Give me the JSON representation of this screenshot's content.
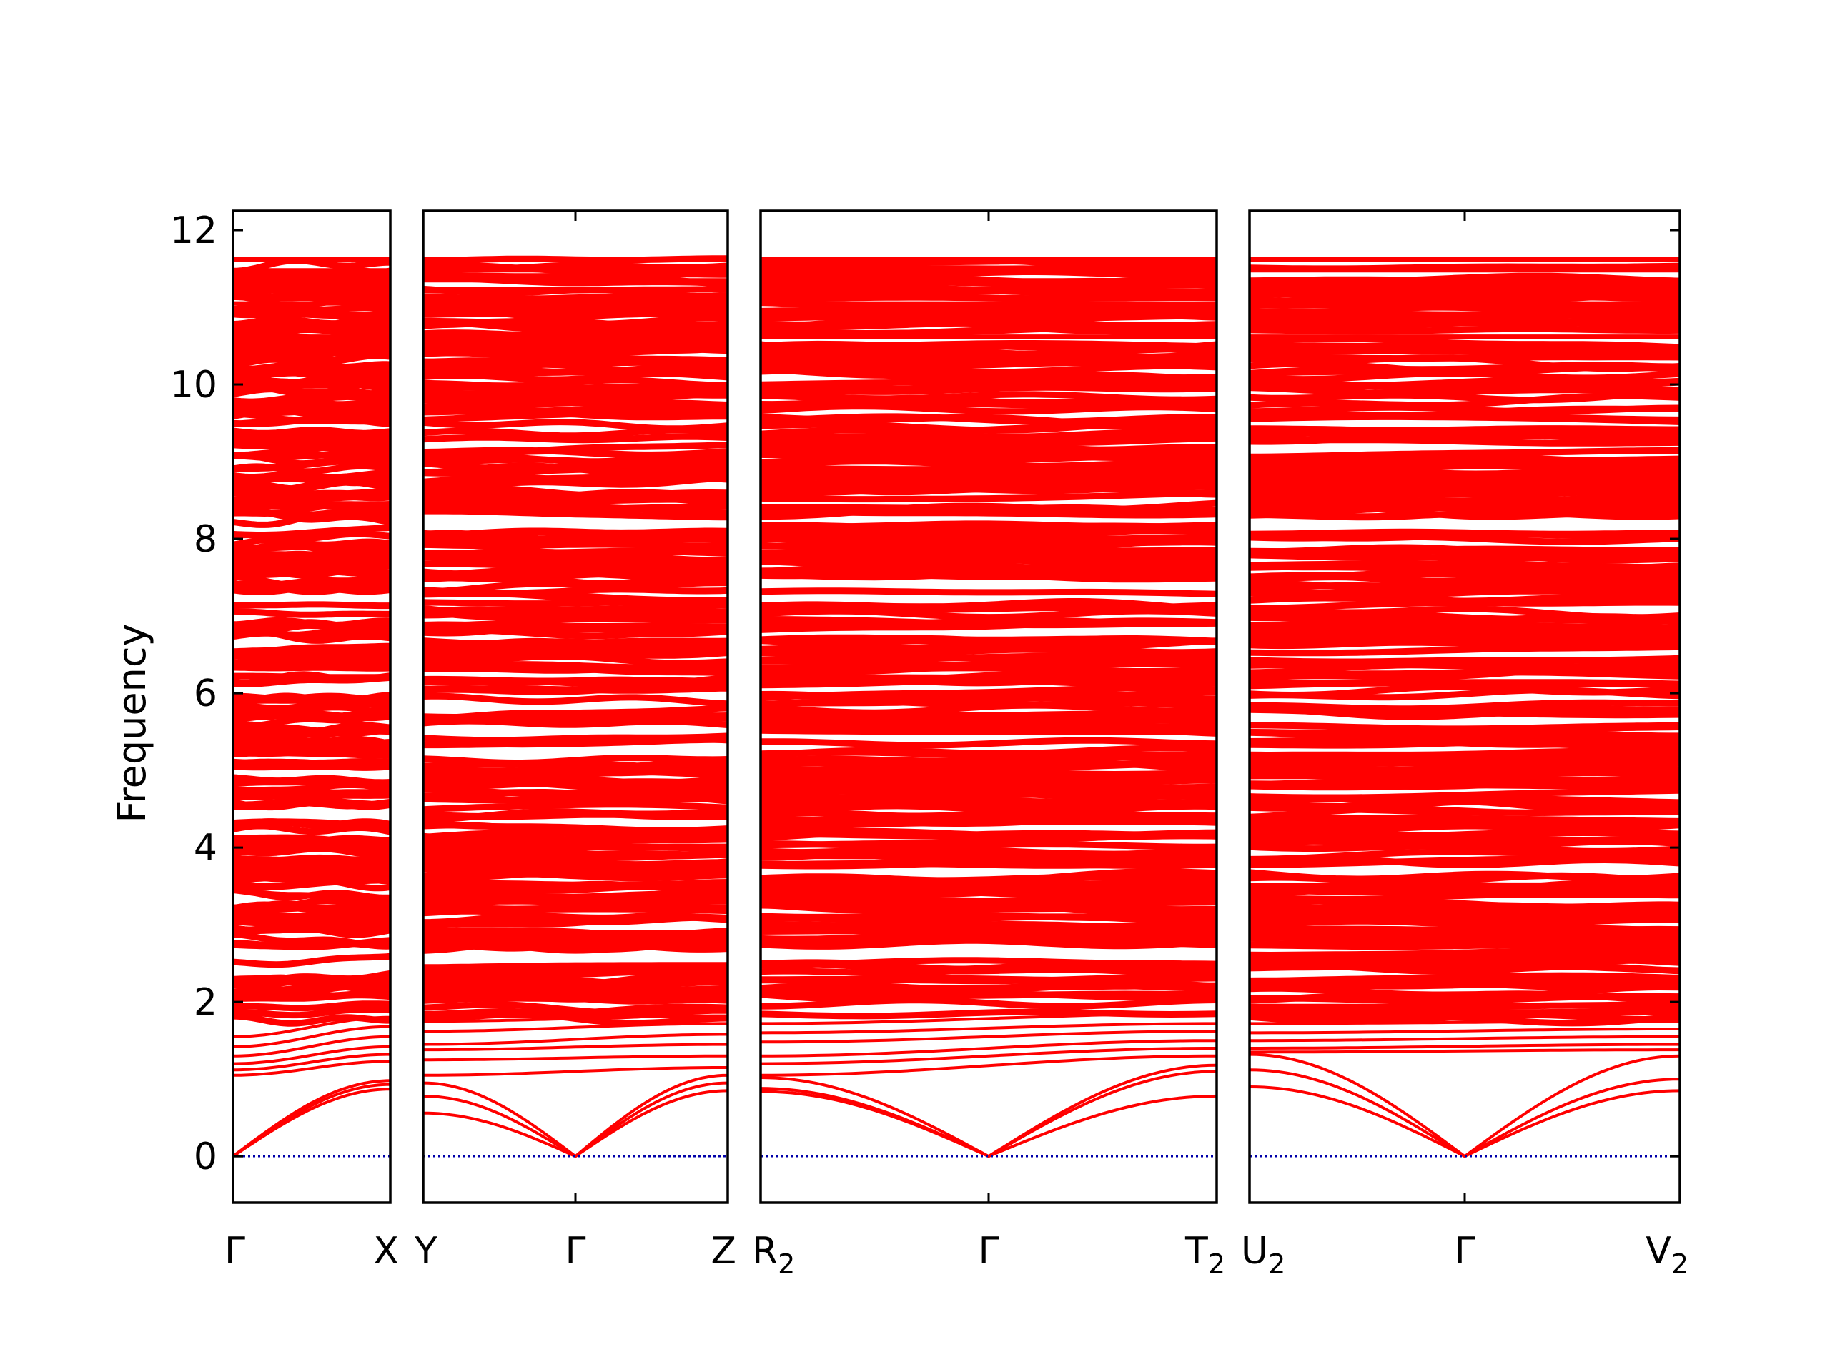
{
  "chart_data": {
    "type": "line",
    "title": "",
    "ylabel": "Frequency",
    "ylim": [
      -0.6,
      12.25
    ],
    "y_ticks": [
      0,
      2,
      4,
      6,
      8,
      10,
      12
    ],
    "zero_line": true,
    "grid": false,
    "legend": "none",
    "band_color": "#ff0000",
    "zero_line_color": "#0000aa",
    "band_count_estimate": 300,
    "panels": [
      {
        "labels": [
          {
            "base": "Γ",
            "sub": ""
          },
          {
            "base": "X",
            "sub": ""
          }
        ],
        "high_symmetry_points": [
          "Γ",
          "X"
        ],
        "acoustic_at_end": [
          0.87,
          0.93,
          0.98
        ],
        "optical_branches": [
          {
            "start": 1.05,
            "end": 1.23
          },
          {
            "start": 1.12,
            "end": 1.32
          },
          {
            "start": 1.2,
            "end": 1.42
          },
          {
            "start": 1.3,
            "end": 1.55
          },
          {
            "start": 1.42,
            "end": 1.68
          },
          {
            "start": 1.55,
            "end": 1.8
          }
        ]
      },
      {
        "labels": [
          {
            "base": "Y",
            "sub": ""
          },
          {
            "base": "Γ",
            "sub": ""
          },
          {
            "base": "Z",
            "sub": ""
          }
        ],
        "high_symmetry_points": [
          "Y",
          "Γ",
          "Z"
        ],
        "acoustic_at_left": [
          0.56,
          0.78,
          0.95
        ],
        "acoustic_at_right": [
          0.85,
          0.95,
          1.05
        ],
        "optical_branches": [
          {
            "start": 1.05,
            "end": 1.15
          },
          {
            "start": 1.25,
            "end": 1.3
          },
          {
            "start": 1.38,
            "end": 1.45
          },
          {
            "start": 1.45,
            "end": 1.58
          },
          {
            "start": 1.62,
            "end": 1.72
          },
          {
            "start": 1.75,
            "end": 1.82
          }
        ]
      },
      {
        "labels": [
          {
            "base": "R",
            "sub": "2"
          },
          {
            "base": "Γ",
            "sub": ""
          },
          {
            "base": "T",
            "sub": "2"
          }
        ],
        "high_symmetry_points": [
          "R2",
          "Γ",
          "T2"
        ],
        "acoustic_at_left": [
          0.84,
          0.88,
          1.02
        ],
        "acoustic_at_right": [
          0.78,
          1.1,
          1.18
        ],
        "optical_branches": [
          {
            "start": 1.05,
            "end": 1.3
          },
          {
            "start": 1.2,
            "end": 1.4
          },
          {
            "start": 1.3,
            "end": 1.5
          },
          {
            "start": 1.48,
            "end": 1.62
          },
          {
            "start": 1.6,
            "end": 1.72
          },
          {
            "start": 1.72,
            "end": 1.85
          }
        ]
      },
      {
        "labels": [
          {
            "base": "U",
            "sub": "2"
          },
          {
            "base": "Γ",
            "sub": ""
          },
          {
            "base": "V",
            "sub": "2"
          }
        ],
        "high_symmetry_points": [
          "U2",
          "Γ",
          "V2"
        ],
        "acoustic_at_left": [
          0.9,
          1.12,
          1.32
        ],
        "acoustic_at_right": [
          0.85,
          1.0,
          1.3
        ],
        "optical_branches": [
          {
            "start": 1.35,
            "end": 1.38
          },
          {
            "start": 1.4,
            "end": 1.45
          },
          {
            "start": 1.5,
            "end": 1.55
          },
          {
            "start": 1.6,
            "end": 1.65
          },
          {
            "start": 1.72,
            "end": 1.75
          },
          {
            "start": 1.8,
            "end": 1.85
          }
        ]
      }
    ]
  }
}
